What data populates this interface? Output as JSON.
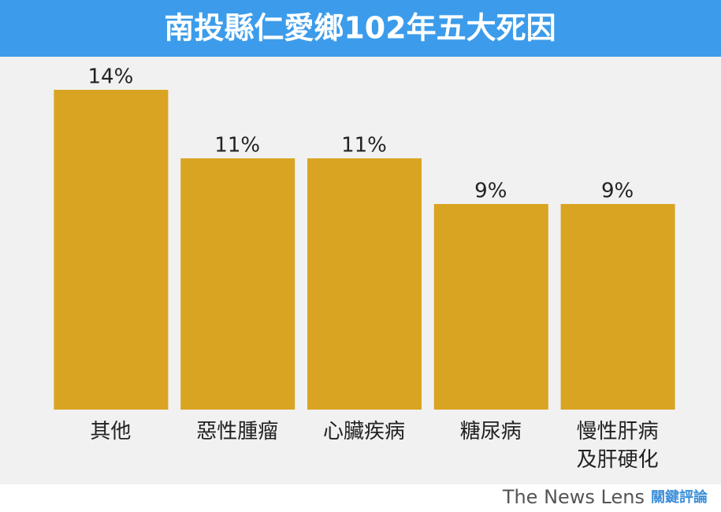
{
  "chart_data": {
    "type": "bar",
    "title": "南投縣仁愛鄉102年五大死因",
    "categories": [
      "其他",
      "惡性腫瘤",
      "心臟疾病",
      "糖尿病",
      "慢性肝病\n及肝硬化"
    ],
    "values": [
      14,
      11,
      11,
      9,
      9
    ],
    "value_labels": [
      "14%",
      "11%",
      "11%",
      "9%",
      "9%"
    ],
    "color": "#d9a421"
  },
  "footer": {
    "brand": "The News Lens",
    "brand_zh": "關鍵評論"
  }
}
